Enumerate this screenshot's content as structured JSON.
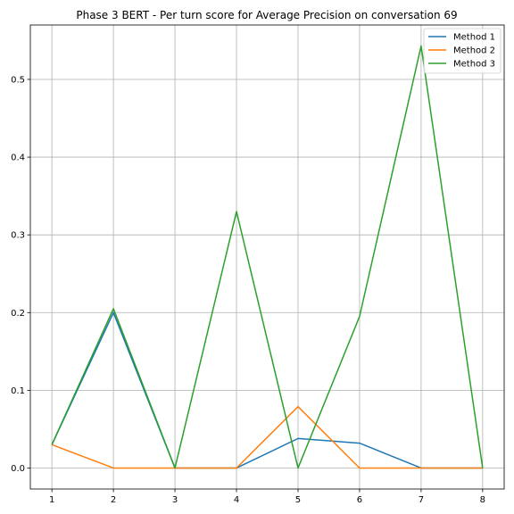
{
  "chart_data": {
    "type": "line",
    "title": "Phase 3 BERT - Per turn score for Average Precision on conversation 69",
    "xlabel": "",
    "ylabel": "",
    "x": [
      1,
      2,
      3,
      4,
      5,
      6,
      7,
      8
    ],
    "xlim": [
      0.65,
      8.35
    ],
    "ylim": [
      -0.027,
      0.57
    ],
    "yticks": [
      "0.0",
      "0.1",
      "0.2",
      "0.3",
      "0.4",
      "0.5"
    ],
    "xticks": [
      "1",
      "2",
      "3",
      "4",
      "5",
      "6",
      "7",
      "8"
    ],
    "grid": true,
    "legend_position": "top-right",
    "series": [
      {
        "name": "Method 1",
        "color": "#1f77b4",
        "values": [
          0.03,
          0.2,
          0.0,
          0.0,
          0.038,
          0.032,
          0.0,
          0.0
        ]
      },
      {
        "name": "Method 2",
        "color": "#ff7f0e",
        "values": [
          0.03,
          0.0,
          0.0,
          0.0,
          0.079,
          0.0,
          0.0,
          0.0
        ]
      },
      {
        "name": "Method 3",
        "color": "#2ca02c",
        "values": [
          0.03,
          0.205,
          0.0,
          0.33,
          0.0,
          0.195,
          0.543,
          0.0
        ]
      }
    ]
  }
}
